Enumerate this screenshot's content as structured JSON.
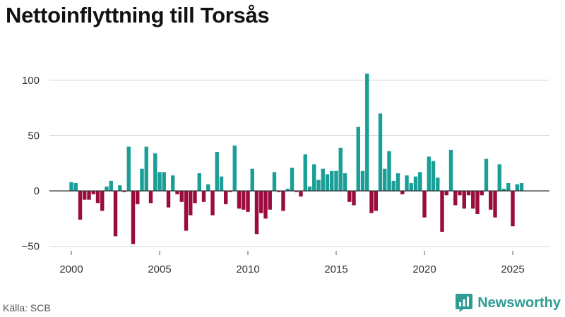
{
  "title": "Nettoinflyttning till Torsås",
  "source": "Källa: SCB",
  "brand": "Newsworthy",
  "colors": {
    "positive": "#1a9e96",
    "negative": "#9a0b3e",
    "grid": "#d8d8d8",
    "zero": "#333333",
    "brand": "#2e9c94"
  },
  "chart_data": {
    "type": "bar",
    "title": "Nettoinflyttning till Torsås",
    "xlabel": "",
    "ylabel": "",
    "ylim": [
      -55,
      115
    ],
    "yticks": [
      -50,
      0,
      50,
      100
    ],
    "ytick_labels": [
      "−50",
      "0",
      "50",
      "100"
    ],
    "xticks": [
      2000,
      2005,
      2010,
      2015,
      2020,
      2025
    ],
    "xlim": [
      1999.0,
      2026.75
    ],
    "bar_width_years": 0.2,
    "grid": true,
    "categories": [
      "2000-Q1",
      "2000-Q2",
      "2000-Q3",
      "2000-Q4",
      "2001-Q1",
      "2001-Q2",
      "2001-Q3",
      "2001-Q4",
      "2002-Q1",
      "2002-Q2",
      "2002-Q3",
      "2002-Q4",
      "2003-Q1",
      "2003-Q2",
      "2003-Q3",
      "2003-Q4",
      "2004-Q1",
      "2004-Q2",
      "2004-Q3",
      "2004-Q4",
      "2005-Q1",
      "2005-Q2",
      "2005-Q3",
      "2005-Q4",
      "2006-Q1",
      "2006-Q2",
      "2006-Q3",
      "2006-Q4",
      "2007-Q1",
      "2007-Q2",
      "2007-Q3",
      "2007-Q4",
      "2008-Q1",
      "2008-Q2",
      "2008-Q3",
      "2008-Q4",
      "2009-Q1",
      "2009-Q2",
      "2009-Q3",
      "2009-Q4",
      "2010-Q1",
      "2010-Q2",
      "2010-Q3",
      "2010-Q4",
      "2011-Q1",
      "2011-Q2",
      "2011-Q3",
      "2011-Q4",
      "2012-Q1",
      "2012-Q2",
      "2012-Q3",
      "2012-Q4",
      "2013-Q1",
      "2013-Q2",
      "2013-Q3",
      "2013-Q4",
      "2014-Q1",
      "2014-Q2",
      "2014-Q3",
      "2014-Q4",
      "2015-Q1",
      "2015-Q2",
      "2015-Q3",
      "2015-Q4",
      "2016-Q1",
      "2016-Q2",
      "2016-Q3",
      "2016-Q4",
      "2017-Q1",
      "2017-Q2",
      "2017-Q3",
      "2017-Q4",
      "2018-Q1",
      "2018-Q2",
      "2018-Q3",
      "2018-Q4",
      "2019-Q1",
      "2019-Q2",
      "2019-Q3",
      "2019-Q4",
      "2020-Q1",
      "2020-Q2",
      "2020-Q3",
      "2020-Q4",
      "2021-Q1",
      "2021-Q2",
      "2021-Q3",
      "2021-Q4",
      "2022-Q1",
      "2022-Q2",
      "2022-Q3",
      "2022-Q4",
      "2023-Q1",
      "2023-Q2",
      "2023-Q3",
      "2023-Q4",
      "2024-Q1",
      "2024-Q2",
      "2024-Q3",
      "2024-Q4",
      "2025-Q1",
      "2025-Q2",
      "2025-Q3"
    ],
    "x": [
      2000.0,
      2000.25,
      2000.5,
      2000.75,
      2001.0,
      2001.25,
      2001.5,
      2001.75,
      2002.0,
      2002.25,
      2002.5,
      2002.75,
      2003.0,
      2003.25,
      2003.5,
      2003.75,
      2004.0,
      2004.25,
      2004.5,
      2004.75,
      2005.0,
      2005.25,
      2005.5,
      2005.75,
      2006.0,
      2006.25,
      2006.5,
      2006.75,
      2007.0,
      2007.25,
      2007.5,
      2007.75,
      2008.0,
      2008.25,
      2008.5,
      2008.75,
      2009.0,
      2009.25,
      2009.5,
      2009.75,
      2010.0,
      2010.25,
      2010.5,
      2010.75,
      2011.0,
      2011.25,
      2011.5,
      2011.75,
      2012.0,
      2012.25,
      2012.5,
      2012.75,
      2013.0,
      2013.25,
      2013.5,
      2013.75,
      2014.0,
      2014.25,
      2014.5,
      2014.75,
      2015.0,
      2015.25,
      2015.5,
      2015.75,
      2016.0,
      2016.25,
      2016.5,
      2016.75,
      2017.0,
      2017.25,
      2017.5,
      2017.75,
      2018.0,
      2018.25,
      2018.5,
      2018.75,
      2019.0,
      2019.25,
      2019.5,
      2019.75,
      2020.0,
      2020.25,
      2020.5,
      2020.75,
      2021.0,
      2021.25,
      2021.5,
      2021.75,
      2022.0,
      2022.25,
      2022.5,
      2022.75,
      2023.0,
      2023.25,
      2023.5,
      2023.75,
      2024.0,
      2024.25,
      2024.5,
      2024.75,
      2025.0,
      2025.25,
      2025.5
    ],
    "values": [
      8,
      7,
      -26,
      -8,
      -8,
      -3,
      -11,
      -18,
      4,
      9,
      -41,
      5,
      -1,
      40,
      -48,
      -12,
      20,
      40,
      -11,
      34,
      17,
      17,
      -15,
      14,
      -3,
      -10,
      -36,
      -22,
      -11,
      16,
      -10,
      6,
      -22,
      35,
      13,
      -12,
      -1,
      41,
      -16,
      -17,
      -19,
      20,
      -39,
      -20,
      -25,
      -17,
      17,
      -1,
      -18,
      2,
      21,
      -1,
      -5,
      33,
      4,
      24,
      10,
      20,
      15,
      18,
      18,
      39,
      16,
      -10,
      -13,
      58,
      18,
      106,
      -20,
      -18,
      70,
      20,
      36,
      9,
      16,
      -3,
      14,
      7,
      13,
      17,
      -24,
      31,
      27,
      12,
      -37,
      -4,
      37,
      -13,
      -4,
      -16,
      -4,
      -16,
      -21,
      -4,
      29,
      -17,
      -24,
      24,
      2,
      7,
      -32,
      6,
      7
    ]
  }
}
